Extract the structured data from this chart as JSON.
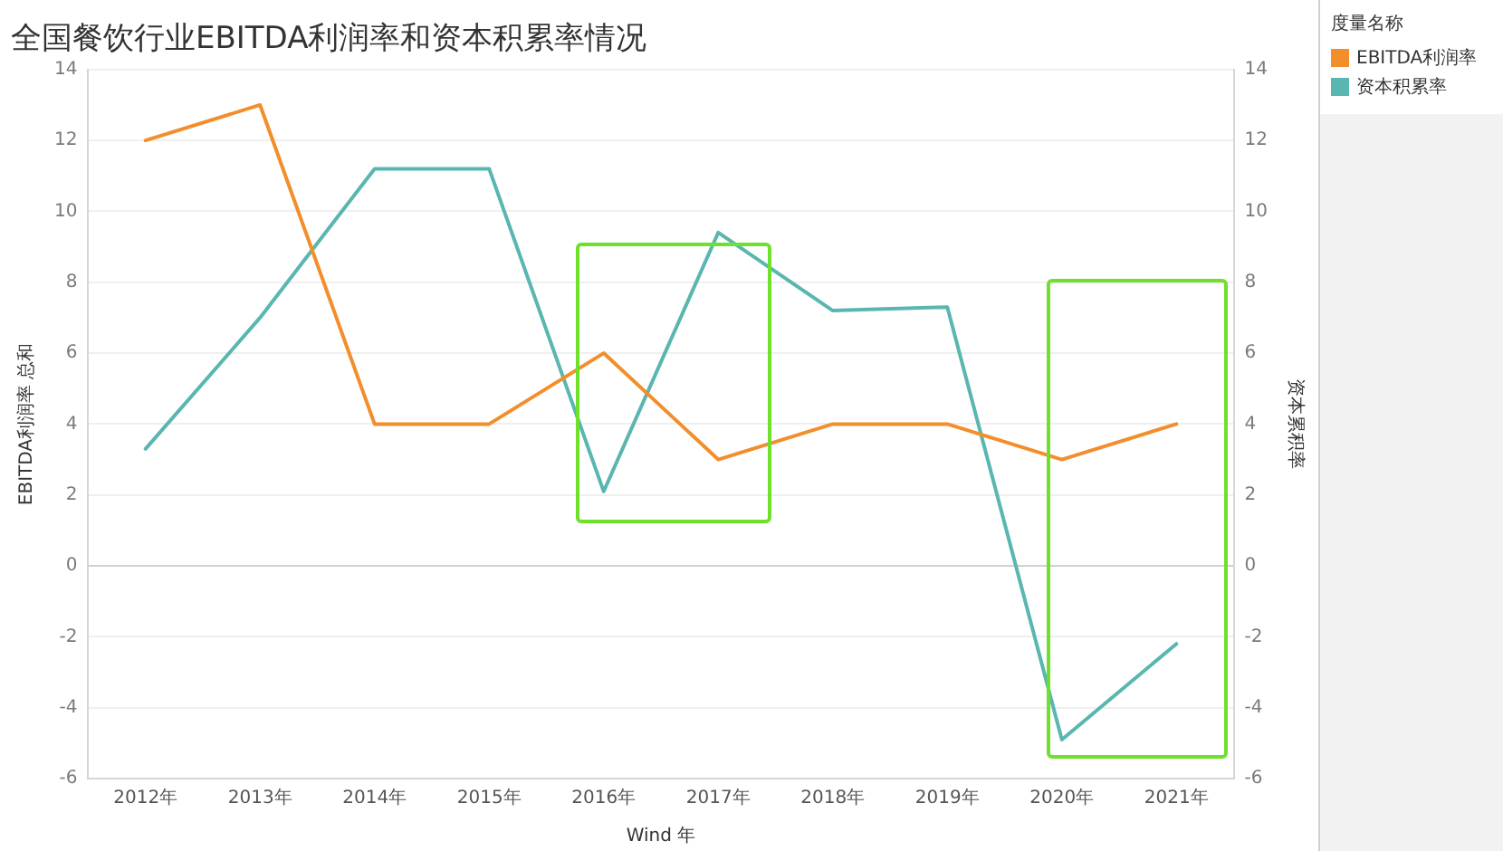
{
  "chart_data": {
    "type": "line",
    "title": "全国餐饮行业EBITDA利润率和资本积累率情况",
    "xlabel": "Wind 年",
    "ylabel": "EBITDA利润率 总和",
    "y2label": "资本累积率",
    "legend_title": "度量名称",
    "categories": [
      "2012年",
      "2013年",
      "2014年",
      "2015年",
      "2016年",
      "2017年",
      "2018年",
      "2019年",
      "2020年",
      "2021年"
    ],
    "series": [
      {
        "name": "EBITDA利润率",
        "color": "#f28e2b",
        "values": [
          12,
          13,
          4,
          4,
          6,
          3,
          4,
          4,
          3,
          4
        ]
      },
      {
        "name": "资本积累率",
        "color": "#59b6b0",
        "axis": "y2",
        "values": [
          3.3,
          7.0,
          11.2,
          11.2,
          2.1,
          9.4,
          7.2,
          7.3,
          -4.9,
          -2.2
        ]
      }
    ],
    "ylim": [
      -6,
      14
    ],
    "yticks": [
      -6,
      -4,
      -2,
      0,
      2,
      4,
      6,
      8,
      10,
      12,
      14
    ],
    "y2lim": [
      -6,
      14
    ],
    "y2ticks": [
      -6,
      -4,
      -2,
      0,
      2,
      4,
      6,
      8,
      10,
      12,
      14
    ],
    "grid": "y",
    "legend": "top right",
    "marker": "none"
  }
}
